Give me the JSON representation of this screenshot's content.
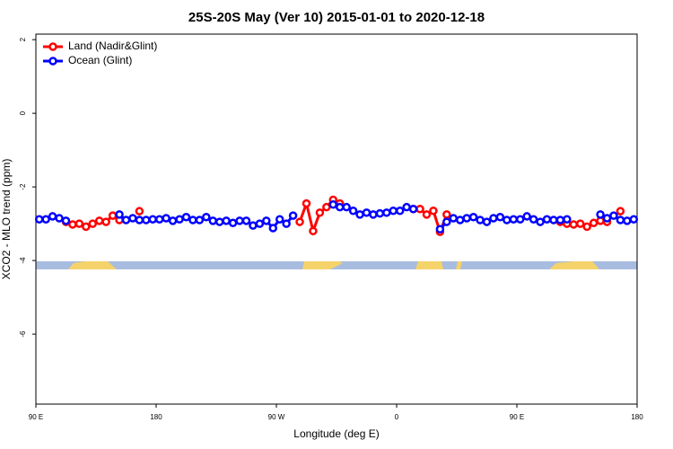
{
  "chart_data": {
    "type": "line",
    "title": "25S-20S May (Ver 10)   2015-01-01 to 2020-12-18",
    "x_label": "Longitude (deg E)",
    "y_label": "XCO2 - MLO trend (ppm)",
    "xlim": [
      90,
      540
    ],
    "ylim": [
      -7.9,
      2.15
    ],
    "xticks": [
      {
        "value": 90,
        "label": "90 E"
      },
      {
        "value": 180,
        "label": "180"
      },
      {
        "value": 270,
        "label": "90 W"
      },
      {
        "value": 360,
        "label": "0"
      },
      {
        "value": 450,
        "label": "90 E"
      },
      {
        "value": 540,
        "label": "180"
      }
    ],
    "yticks": [
      2,
      0,
      -2,
      -4,
      -6
    ],
    "legend": "top-left",
    "x": [
      92.5,
      97.5,
      102.5,
      107.5,
      112.5,
      117.5,
      122.5,
      127.5,
      132.5,
      137.5,
      142.5,
      147.5,
      152.5,
      157.5,
      162.5,
      167.5,
      172.5,
      177.5,
      182.5,
      187.5,
      192.5,
      197.5,
      202.5,
      207.5,
      212.5,
      217.5,
      222.5,
      227.5,
      232.5,
      237.5,
      242.5,
      247.5,
      252.5,
      257.5,
      262.5,
      267.5,
      272.5,
      277.5,
      282.5,
      287.5,
      292.5,
      297.5,
      302.5,
      307.5,
      312.5,
      317.5,
      322.5,
      327.5,
      332.5,
      337.5,
      342.5,
      347.5,
      352.5,
      357.5,
      362.5,
      367.5,
      372.5,
      377.5,
      382.5,
      387.5,
      392.5,
      397.5,
      402.5,
      407.5,
      412.5,
      417.5,
      422.5,
      427.5,
      432.5,
      437.5,
      442.5,
      447.5,
      452.5,
      457.5,
      462.5,
      467.5,
      472.5,
      477.5,
      482.5,
      487.5,
      492.5,
      497.5,
      502.5,
      507.5,
      512.5,
      517.5,
      522.5,
      527.5,
      532.5,
      537.5
    ],
    "series": [
      {
        "name": "Land (Nadir&Glint)",
        "color": "#ff0000",
        "values": [
          null,
          null,
          null,
          null,
          -2.95,
          -3.02,
          -3.0,
          -3.08,
          -3.0,
          -2.92,
          -2.95,
          -2.78,
          -2.9,
          null,
          null,
          -2.66,
          null,
          null,
          null,
          null,
          null,
          null,
          null,
          null,
          null,
          null,
          null,
          null,
          null,
          null,
          null,
          null,
          null,
          null,
          null,
          null,
          null,
          null,
          null,
          -2.95,
          -2.45,
          -3.2,
          -2.7,
          -2.55,
          -2.35,
          -2.45,
          null,
          null,
          null,
          null,
          null,
          null,
          null,
          null,
          null,
          null,
          -2.6,
          -2.6,
          -2.75,
          -2.65,
          -3.22,
          -2.75,
          null,
          null,
          null,
          null,
          null,
          null,
          null,
          null,
          null,
          null,
          null,
          null,
          null,
          null,
          null,
          null,
          -2.95,
          -3.0,
          -3.02,
          -3.0,
          -3.08,
          -2.98,
          -2.92,
          -2.95,
          null,
          -2.66,
          null,
          null
        ]
      },
      {
        "name": "Ocean (Glint)",
        "color": "#0000ff",
        "values": [
          -2.88,
          -2.88,
          -2.8,
          -2.85,
          -2.92,
          null,
          null,
          null,
          null,
          null,
          null,
          null,
          -2.75,
          -2.9,
          -2.85,
          -2.9,
          -2.9,
          -2.88,
          -2.88,
          -2.85,
          -2.92,
          -2.88,
          -2.82,
          -2.9,
          -2.9,
          -2.82,
          -2.92,
          -2.95,
          -2.92,
          -2.98,
          -2.92,
          -2.92,
          -3.05,
          -3.0,
          -2.92,
          -3.12,
          -2.88,
          -3.0,
          -2.78,
          null,
          null,
          null,
          null,
          null,
          -2.48,
          -2.55,
          -2.55,
          -2.65,
          -2.75,
          -2.7,
          -2.75,
          -2.72,
          -2.7,
          -2.65,
          -2.65,
          -2.55,
          -2.6,
          null,
          null,
          null,
          -3.15,
          -2.95,
          -2.85,
          -2.9,
          -2.85,
          -2.82,
          -2.9,
          -2.95,
          -2.85,
          -2.82,
          -2.9,
          -2.88,
          -2.88,
          -2.8,
          -2.88,
          -2.95,
          -2.88,
          -2.9,
          -2.9,
          -2.88,
          null,
          null,
          null,
          null,
          -2.75,
          -2.85,
          -2.78,
          -2.9,
          -2.92,
          -2.88
        ]
      }
    ]
  }
}
